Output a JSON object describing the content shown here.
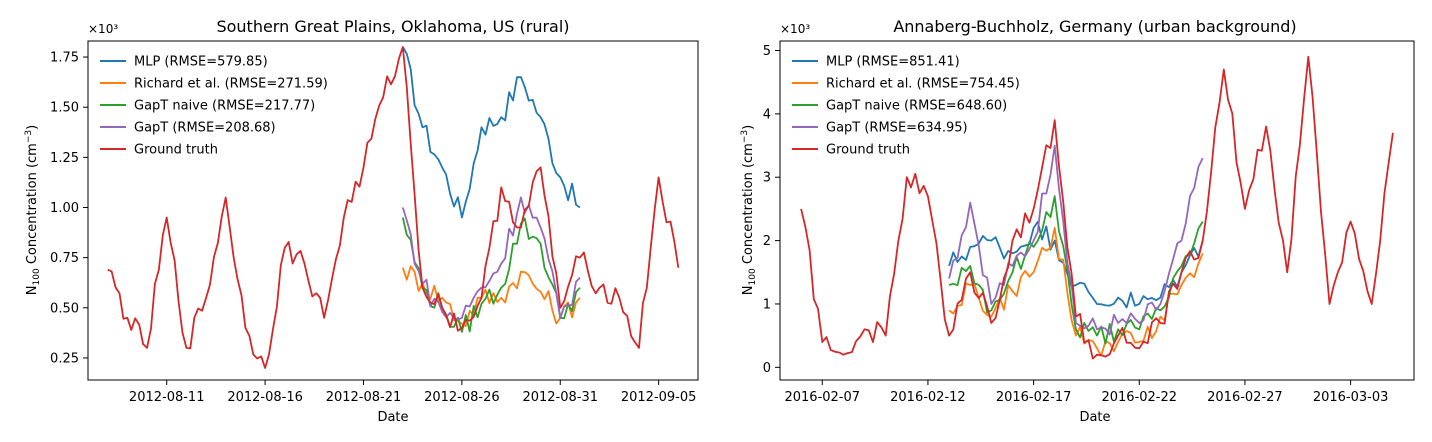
{
  "figure": {
    "xlabel_note": ""
  },
  "chart_data": [
    {
      "type": "line",
      "title": "Southern Great Plains, Oklahoma, US (rural)",
      "xlabel": "Date",
      "ylabel": "N100 Concentration (cm−3)",
      "y_multiplier": "×10³",
      "xlim": [
        "2012-08-07",
        "2012-09-07"
      ],
      "ylim": [
        0.14,
        1.83
      ],
      "x_ticks": [
        "2012-08-11",
        "2012-08-16",
        "2012-08-21",
        "2012-08-26",
        "2012-08-31",
        "2012-09-05"
      ],
      "y_ticks": [
        "0.25",
        "0.50",
        "0.75",
        "1.00",
        "1.25",
        "1.50",
        "1.75"
      ],
      "legend_position": "upper-left",
      "gap": [
        "2012-08-23",
        "2012-09-01"
      ],
      "series": [
        {
          "name": "MLP (RMSE=579.85)",
          "color": "#1f77b4",
          "x": [
            "2012-08-23",
            "2012-08-24",
            "2012-08-25",
            "2012-08-26",
            "2012-08-27",
            "2012-08-28",
            "2012-08-29",
            "2012-08-30",
            "2012-08-31",
            "2012-09-01"
          ],
          "y": [
            1.8,
            1.4,
            1.2,
            0.95,
            1.4,
            1.45,
            1.65,
            1.45,
            1.15,
            1.0
          ]
        },
        {
          "name": "Richard et al. (RMSE=271.59)",
          "color": "#ff7f0e",
          "x": [
            "2012-08-23",
            "2012-08-24",
            "2012-08-25",
            "2012-08-26",
            "2012-08-27",
            "2012-08-28",
            "2012-08-29",
            "2012-08-30",
            "2012-08-31",
            "2012-09-01"
          ],
          "y": [
            0.7,
            0.62,
            0.55,
            0.42,
            0.55,
            0.55,
            0.68,
            0.58,
            0.45,
            0.55
          ]
        },
        {
          "name": "GapT naive (RMSE=217.77)",
          "color": "#2ca02c",
          "x": [
            "2012-08-23",
            "2012-08-24",
            "2012-08-25",
            "2012-08-26",
            "2012-08-27",
            "2012-08-28",
            "2012-08-29",
            "2012-08-30",
            "2012-08-31",
            "2012-09-01"
          ],
          "y": [
            0.95,
            0.6,
            0.5,
            0.38,
            0.52,
            0.6,
            0.92,
            0.82,
            0.45,
            0.6
          ]
        },
        {
          "name": "GapT (RMSE=208.68)",
          "color": "#9467bd",
          "x": [
            "2012-08-23",
            "2012-08-24",
            "2012-08-25",
            "2012-08-26",
            "2012-08-27",
            "2012-08-28",
            "2012-08-29",
            "2012-08-30",
            "2012-08-31",
            "2012-09-01"
          ],
          "y": [
            1.0,
            0.62,
            0.48,
            0.45,
            0.6,
            0.72,
            1.05,
            0.9,
            0.45,
            0.65
          ]
        },
        {
          "name": "Ground truth",
          "color": "#d62728",
          "x": [
            "2012-08-08",
            "2012-08-09",
            "2012-08-10",
            "2012-08-11",
            "2012-08-12",
            "2012-08-13",
            "2012-08-14",
            "2012-08-15",
            "2012-08-16",
            "2012-08-17",
            "2012-08-18",
            "2012-08-19",
            "2012-08-20",
            "2012-08-21",
            "2012-08-22",
            "2012-08-23",
            "2012-08-24",
            "2012-08-25",
            "2012-08-26",
            "2012-08-27",
            "2012-08-28",
            "2012-08-29",
            "2012-08-30",
            "2012-08-31",
            "2012-09-01",
            "2012-09-02",
            "2012-09-03",
            "2012-09-04",
            "2012-09-05",
            "2012-09-06"
          ],
          "y": [
            0.69,
            0.45,
            0.3,
            0.95,
            0.3,
            0.55,
            1.05,
            0.4,
            0.2,
            0.8,
            0.72,
            0.45,
            0.95,
            1.2,
            1.55,
            1.8,
            0.6,
            0.5,
            0.4,
            0.55,
            1.1,
            0.9,
            1.2,
            0.5,
            0.75,
            0.6,
            0.55,
            0.3,
            1.15,
            0.7
          ]
        }
      ]
    },
    {
      "type": "line",
      "title": "Annaberg-Buchholz, Germany (urban background)",
      "xlabel": "Date",
      "ylabel": "N100 Concentration (cm−3)",
      "y_multiplier": "×10³",
      "xlim": [
        "2016-02-05",
        "2016-03-06"
      ],
      "ylim": [
        -0.2,
        5.15
      ],
      "x_ticks": [
        "2016-02-07",
        "2016-02-12",
        "2016-02-17",
        "2016-02-22",
        "2016-02-27",
        "2016-03-03"
      ],
      "y_ticks": [
        "0",
        "1",
        "2",
        "3",
        "4",
        "5"
      ],
      "legend_position": "upper-left",
      "gap": [
        "2016-02-13",
        "2016-02-25"
      ],
      "series": [
        {
          "name": "MLP (RMSE=851.41)",
          "color": "#1f77b4",
          "x": [
            "2016-02-13",
            "2016-02-14",
            "2016-02-15",
            "2016-02-16",
            "2016-02-17",
            "2016-02-18",
            "2016-02-19",
            "2016-02-20",
            "2016-02-21",
            "2016-02-22",
            "2016-02-23",
            "2016-02-24",
            "2016-02-25"
          ],
          "y": [
            1.6,
            1.9,
            2.0,
            1.8,
            2.2,
            2.0,
            1.3,
            1.0,
            1.1,
            1.0,
            1.1,
            1.5,
            2.0
          ]
        },
        {
          "name": "Richard et al. (RMSE=754.45)",
          "color": "#ff7f0e",
          "x": [
            "2016-02-13",
            "2016-02-14",
            "2016-02-15",
            "2016-02-16",
            "2016-02-17",
            "2016-02-18",
            "2016-02-19",
            "2016-02-20",
            "2016-02-21",
            "2016-02-22",
            "2016-02-23",
            "2016-02-24",
            "2016-02-25"
          ],
          "y": [
            0.9,
            1.3,
            0.8,
            1.2,
            1.5,
            2.2,
            0.5,
            0.3,
            0.4,
            0.4,
            0.8,
            1.3,
            1.8
          ]
        },
        {
          "name": "GapT naive (RMSE=648.60)",
          "color": "#2ca02c",
          "x": [
            "2016-02-13",
            "2016-02-14",
            "2016-02-15",
            "2016-02-16",
            "2016-02-17",
            "2016-02-18",
            "2016-02-19",
            "2016-02-20",
            "2016-02-21",
            "2016-02-22",
            "2016-02-23",
            "2016-02-24",
            "2016-02-25"
          ],
          "y": [
            1.3,
            1.6,
            0.9,
            1.5,
            1.9,
            2.7,
            0.6,
            0.5,
            0.6,
            0.6,
            0.9,
            1.6,
            2.3
          ]
        },
        {
          "name": "GapT (RMSE=634.95)",
          "color": "#9467bd",
          "x": [
            "2016-02-13",
            "2016-02-14",
            "2016-02-15",
            "2016-02-16",
            "2016-02-17",
            "2016-02-18",
            "2016-02-19",
            "2016-02-20",
            "2016-02-21",
            "2016-02-22",
            "2016-02-23",
            "2016-02-24",
            "2016-02-25"
          ],
          "y": [
            1.4,
            2.6,
            1.0,
            1.6,
            2.0,
            3.5,
            0.7,
            0.6,
            0.7,
            0.7,
            1.0,
            2.0,
            3.3
          ]
        },
        {
          "name": "Ground truth",
          "color": "#d62728",
          "x": [
            "2016-02-06",
            "2016-02-07",
            "2016-02-08",
            "2016-02-09",
            "2016-02-10",
            "2016-02-11",
            "2016-02-12",
            "2016-02-13",
            "2016-02-14",
            "2016-02-15",
            "2016-02-16",
            "2016-02-17",
            "2016-02-18",
            "2016-02-19",
            "2016-02-20",
            "2016-02-21",
            "2016-02-22",
            "2016-02-23",
            "2016-02-24",
            "2016-02-25",
            "2016-02-26",
            "2016-02-27",
            "2016-02-28",
            "2016-02-29",
            "2016-03-01",
            "2016-03-02",
            "2016-03-03",
            "2016-03-04",
            "2016-03-05"
          ],
          "y": [
            2.5,
            0.4,
            0.2,
            0.6,
            0.5,
            3.0,
            2.7,
            0.5,
            1.5,
            0.7,
            2.0,
            2.5,
            3.9,
            0.8,
            0.2,
            0.5,
            0.3,
            0.7,
            1.5,
            2.0,
            4.7,
            2.5,
            3.8,
            1.5,
            4.9,
            1.0,
            2.3,
            1.0,
            3.7
          ]
        }
      ]
    }
  ]
}
